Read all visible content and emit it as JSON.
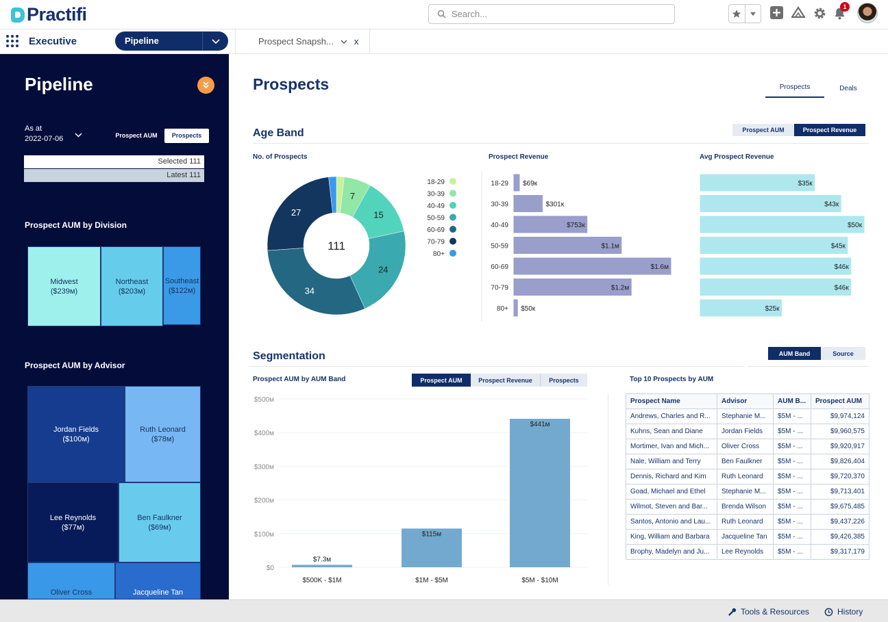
{
  "header": {
    "logo": "Practifi",
    "search_placeholder": "Search...",
    "notification_count": "1"
  },
  "nav": {
    "app_name": "Executive",
    "pipeline_label": "Pipeline",
    "tab_label": "Prospect Snapsh...",
    "tab_close": "x"
  },
  "sidebar": {
    "title": "Pipeline",
    "as_at_label": "As at",
    "as_at_date": "2022-07-06",
    "toggle": [
      "Prospect AUM",
      "Prospects"
    ],
    "selected": "Selected 111",
    "latest": "Latest 111",
    "division_title": "Prospect AUM by Division",
    "divisions": [
      {
        "name": "Midwest",
        "value": "($239м)",
        "color": "#9ef0ed"
      },
      {
        "name": "Northeast",
        "value": "($203м)",
        "color": "#65ccec"
      },
      {
        "name": "Southeast",
        "value": "($122м)",
        "color": "#3a9ae8"
      }
    ],
    "advisor_title": "Prospect AUM by Advisor",
    "advisors": [
      {
        "name": "Jordan Fields",
        "value": "($100м)",
        "color": "#163c8f"
      },
      {
        "name": "Ruth Leonard",
        "value": "($78м)",
        "color": "#77b7f3"
      },
      {
        "name": "Lee Reynolds",
        "value": "($77м)",
        "color": "#071b5a"
      },
      {
        "name": "Ben Faulkner",
        "value": "($69м)",
        "color": "#68cbee"
      },
      {
        "name": "Oliver Cross",
        "value": "",
        "color": "#3a98e9"
      },
      {
        "name": "Jacqueline Tan",
        "value": "",
        "color": "#2a6ccd"
      }
    ]
  },
  "main": {
    "title": "Prospects",
    "tabs": [
      "Prospects",
      "Deals"
    ],
    "age_band": {
      "title": "Age Band",
      "toggle": [
        "Prospect AUM",
        "Prospect Revenue"
      ],
      "active": "Prospect Revenue"
    },
    "segmentation": {
      "title": "Segmentation",
      "toggle": [
        "AUM Band",
        "Source"
      ],
      "active": "AUM Band"
    },
    "aum_band_toggle": [
      "Prospect AUM",
      "Prospect Revenue",
      "Prospects"
    ]
  },
  "chart_data": [
    {
      "type": "pie",
      "title": "No. of Prospects",
      "center_label": "111",
      "categories": [
        "18-29",
        "30-39",
        "40-49",
        "50-59",
        "60-69",
        "70-79",
        "80+"
      ],
      "values": [
        2,
        7,
        15,
        24,
        34,
        27,
        2
      ],
      "colors": [
        "#c8f29a",
        "#92e6a6",
        "#52d3bb",
        "#3aa9b0",
        "#236782",
        "#13365f",
        "#3a98ee"
      ],
      "legend": "right"
    },
    {
      "type": "bar",
      "orientation": "horizontal",
      "title": "Prospect Revenue",
      "categories": [
        "18-29",
        "30-39",
        "40-49",
        "50-59",
        "60-69",
        "70-79",
        "80+"
      ],
      "values": [
        69000,
        301000,
        753000,
        1100000,
        1600000,
        1200000,
        50000
      ],
      "labels": [
        "$69к",
        "$301к",
        "$753к",
        "$1.1м",
        "$1.6м",
        "$1.2м",
        "$50к"
      ],
      "color": "#9a9ecb"
    },
    {
      "type": "bar",
      "orientation": "horizontal",
      "title": "Avg Prospect Revenue",
      "categories": [
        "18-29",
        "30-39",
        "40-49",
        "50-59",
        "60-69",
        "70-79",
        "80+"
      ],
      "values": [
        35000,
        43000,
        50000,
        45000,
        46000,
        46000,
        25000
      ],
      "labels": [
        "$35к",
        "$43к",
        "$50к",
        "$45к",
        "$46к",
        "$46к",
        "$25к"
      ],
      "color": "#aee8ee"
    },
    {
      "type": "bar",
      "title": "Prospect AUM by AUM Band",
      "categories": [
        "$500K - $1M",
        "$1M - $5M",
        "$5M - $10M"
      ],
      "values": [
        7.3,
        115,
        441
      ],
      "labels": [
        "$7.3м",
        "$115м",
        "$441м"
      ],
      "ylim": [
        0,
        500
      ],
      "yticks": [
        0,
        100,
        200,
        300,
        400,
        500
      ],
      "ytick_labels": [
        "$0",
        "$100м",
        "$200м",
        "$300м",
        "$400м",
        "$500м"
      ],
      "grid": true,
      "color": "#74a9cf"
    },
    {
      "type": "table",
      "title": "Top 10 Prospects by AUM",
      "columns": [
        "Prospect Name",
        "Advisor",
        "AUM B...",
        "Prospect AUM"
      ],
      "rows": [
        [
          "Andrews, Charles and R...",
          "Stephanie M...",
          "$5M - ...",
          "$9,974,124"
        ],
        [
          "Kuhns, Sean and Diane",
          "Jordan Fields",
          "$5M - ...",
          "$9,960,575"
        ],
        [
          "Mortimer, Ivan and Mich...",
          "Oliver Cross",
          "$5M - ...",
          "$9,920,917"
        ],
        [
          "Nale, William and Terry",
          "Ben Faulkner",
          "$5M - ...",
          "$9,826,404"
        ],
        [
          "Dennis, Richard and Kim",
          "Ruth Leonard",
          "$5M - ...",
          "$9,720,370"
        ],
        [
          "Goad, Michael and Ethel",
          "Stephanie M...",
          "$5M - ...",
          "$9,713,401"
        ],
        [
          "Wilmot, Steven and Bar...",
          "Brenda Wilson",
          "$5M - ...",
          "$9,675,485"
        ],
        [
          "Santos, Antonio and Lau...",
          "Ruth Leonard",
          "$5M - ...",
          "$9,437,226"
        ],
        [
          "King, William and Barbara",
          "Jacqueline Tan",
          "$5M - ...",
          "$9,426,385"
        ],
        [
          "Brophy, Madelyn and Ju...",
          "Lee Reynolds",
          "$5M - ...",
          "$9,317,179"
        ]
      ]
    }
  ],
  "footer": {
    "tools": "Tools & Resources",
    "history": "History"
  }
}
